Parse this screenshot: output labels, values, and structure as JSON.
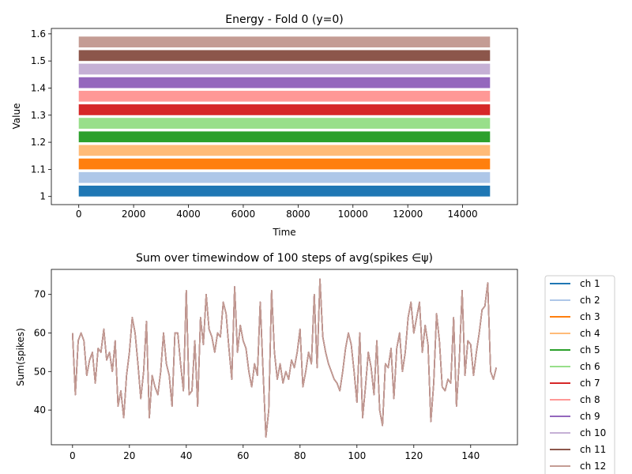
{
  "chart_data": [
    {
      "type": "area",
      "title": "Energy - Fold 0 (y=0)",
      "xlabel": "Time",
      "ylabel": "Value",
      "xlim": [
        -1000,
        16000
      ],
      "ylim": [
        0.97,
        1.62
      ],
      "xticks": [
        0,
        2000,
        4000,
        6000,
        8000,
        10000,
        12000,
        14000
      ],
      "yticks": [
        1.0,
        1.1,
        1.2,
        1.3,
        1.4,
        1.5,
        1.6
      ],
      "x_range": [
        0,
        15000
      ],
      "series": [
        {
          "color": "#1f77b4",
          "y_low": 1.0,
          "y_high": 1.04
        },
        {
          "color": "#aec7e8",
          "y_low": 1.05,
          "y_high": 1.09
        },
        {
          "color": "#ff7f0e",
          "y_low": 1.1,
          "y_high": 1.14
        },
        {
          "color": "#ffbb78",
          "y_low": 1.15,
          "y_high": 1.19
        },
        {
          "color": "#2ca02c",
          "y_low": 1.2,
          "y_high": 1.24
        },
        {
          "color": "#98df8a",
          "y_low": 1.25,
          "y_high": 1.29
        },
        {
          "color": "#d62728",
          "y_low": 1.3,
          "y_high": 1.34
        },
        {
          "color": "#ff9896",
          "y_low": 1.35,
          "y_high": 1.39
        },
        {
          "color": "#9467bd",
          "y_low": 1.4,
          "y_high": 1.44
        },
        {
          "color": "#c5b0d5",
          "y_low": 1.45,
          "y_high": 1.49
        },
        {
          "color": "#8c564b",
          "y_low": 1.5,
          "y_high": 1.54
        },
        {
          "color": "#c49c94",
          "y_low": 1.55,
          "y_high": 1.59
        }
      ]
    },
    {
      "type": "line",
      "title": "Sum over timewindow of 100 steps of avg(spikes ∈ψ)",
      "xlabel": "",
      "ylabel": "Sum(spikes)",
      "xlim": [
        -7.45,
        156.45
      ],
      "ylim": [
        31,
        76.5
      ],
      "xticks": [
        0,
        20,
        40,
        60,
        80,
        100,
        120,
        140
      ],
      "yticks": [
        40,
        50,
        60,
        70
      ],
      "legend_placement": "right, outside",
      "series": [
        {
          "name": "ch 1",
          "color": "#1f77b4"
        },
        {
          "name": "ch 2",
          "color": "#aec7e8"
        },
        {
          "name": "ch 3",
          "color": "#ff7f0e"
        },
        {
          "name": "ch 4",
          "color": "#ffbb78"
        },
        {
          "name": "ch 5",
          "color": "#2ca02c"
        },
        {
          "name": "ch 6",
          "color": "#98df8a"
        },
        {
          "name": "ch 7",
          "color": "#d62728"
        },
        {
          "name": "ch 8",
          "color": "#ff9896"
        },
        {
          "name": "ch 9",
          "color": "#9467bd"
        },
        {
          "name": "ch 10",
          "color": "#c5b0d5"
        },
        {
          "name": "ch 11",
          "color": "#8c564b"
        },
        {
          "name": "ch 12",
          "color": "#c49c94"
        }
      ],
      "x": [
        0,
        1,
        2,
        3,
        4,
        5,
        6,
        7,
        8,
        9,
        10,
        11,
        12,
        13,
        14,
        15,
        16,
        17,
        18,
        19,
        20,
        21,
        22,
        23,
        24,
        25,
        26,
        27,
        28,
        29,
        30,
        31,
        32,
        33,
        34,
        35,
        36,
        37,
        38,
        39,
        40,
        41,
        42,
        43,
        44,
        45,
        46,
        47,
        48,
        49,
        50,
        51,
        52,
        53,
        54,
        55,
        56,
        57,
        58,
        59,
        60,
        61,
        62,
        63,
        64,
        65,
        66,
        67,
        68,
        69,
        70,
        71,
        72,
        73,
        74,
        75,
        76,
        77,
        78,
        79,
        80,
        81,
        82,
        83,
        84,
        85,
        86,
        87,
        88,
        89,
        90,
        91,
        92,
        93,
        94,
        95,
        96,
        97,
        98,
        99,
        100,
        101,
        102,
        103,
        104,
        105,
        106,
        107,
        108,
        109,
        110,
        111,
        112,
        113,
        114,
        115,
        116,
        117,
        118,
        119,
        120,
        121,
        122,
        123,
        124,
        125,
        126,
        127,
        128,
        129,
        130,
        131,
        132,
        133,
        134,
        135,
        136,
        137,
        138,
        139,
        140,
        141,
        142,
        143,
        144,
        145,
        146,
        147,
        148,
        149
      ],
      "y": [
        60,
        44,
        58,
        60,
        58,
        49,
        53,
        55,
        47,
        56,
        55,
        61,
        53,
        55,
        50,
        58,
        41,
        45,
        38,
        49,
        55,
        64,
        60,
        52,
        43,
        50,
        63,
        38,
        49,
        46,
        44,
        50,
        60,
        52,
        49,
        41,
        60,
        60,
        52,
        45,
        71,
        44,
        45,
        58,
        41,
        64,
        57,
        70,
        61,
        59,
        55,
        60,
        59,
        68,
        65,
        56,
        48,
        72,
        55,
        62,
        58,
        56,
        50,
        46,
        52,
        49,
        68,
        50,
        33,
        40,
        71,
        55,
        48,
        52,
        47,
        50,
        48,
        53,
        51,
        55,
        61,
        46,
        50,
        55,
        52,
        70,
        51,
        74,
        59,
        55,
        52,
        50,
        48,
        47,
        45,
        50,
        56,
        60,
        57,
        50,
        42,
        60,
        38,
        46,
        55,
        51,
        44,
        58,
        40,
        36,
        52,
        51,
        56,
        43,
        56,
        60,
        50,
        55,
        64,
        68,
        60,
        64,
        68,
        55,
        62,
        57,
        37,
        47,
        65,
        58,
        46,
        45,
        48,
        47,
        64,
        41,
        53,
        71,
        49,
        58,
        57,
        49,
        55,
        60,
        66,
        67,
        73,
        50,
        48,
        51
      ]
    }
  ]
}
